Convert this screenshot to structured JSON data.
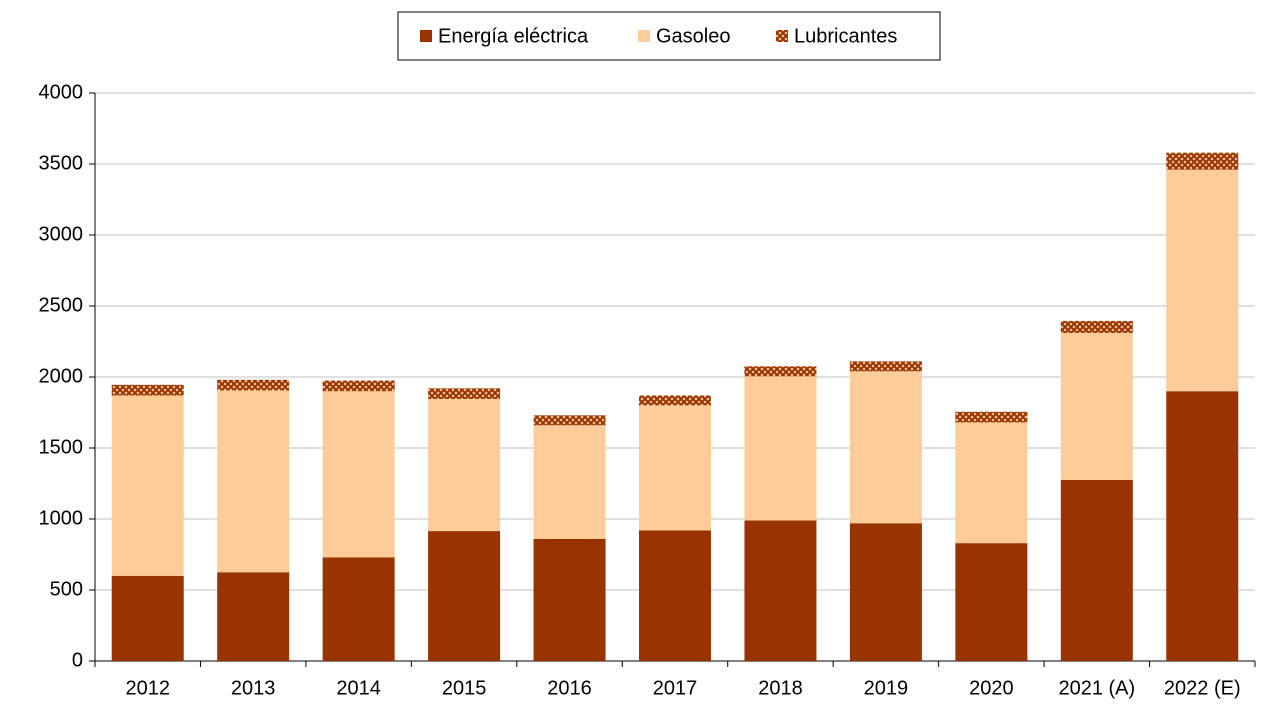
{
  "chart_data": {
    "type": "stacked_bar",
    "categories": [
      "2012",
      "2013",
      "2014",
      "2015",
      "2016",
      "2017",
      "2018",
      "2019",
      "2020",
      "2021 (A)",
      "2022 (E)"
    ],
    "series": [
      {
        "name": "Energía eléctrica",
        "color": "#993300",
        "values": [
          600,
          625,
          730,
          915,
          860,
          920,
          990,
          970,
          830,
          1275,
          1900
        ]
      },
      {
        "name": "Gasoleo",
        "color": "#ffcc99",
        "values": [
          1270,
          1280,
          1170,
          930,
          800,
          880,
          1015,
          1070,
          850,
          1035,
          1560
        ]
      },
      {
        "name": "Lubricantes",
        "color": "#993300",
        "pattern": "hatch",
        "values": [
          75,
          75,
          75,
          75,
          70,
          70,
          70,
          70,
          75,
          85,
          120
        ]
      }
    ],
    "ylim": [
      0,
      4000
    ],
    "yticks": [
      0,
      500,
      1000,
      1500,
      2000,
      2500,
      3000,
      3500,
      4000
    ],
    "grid": true,
    "legend": "top"
  }
}
